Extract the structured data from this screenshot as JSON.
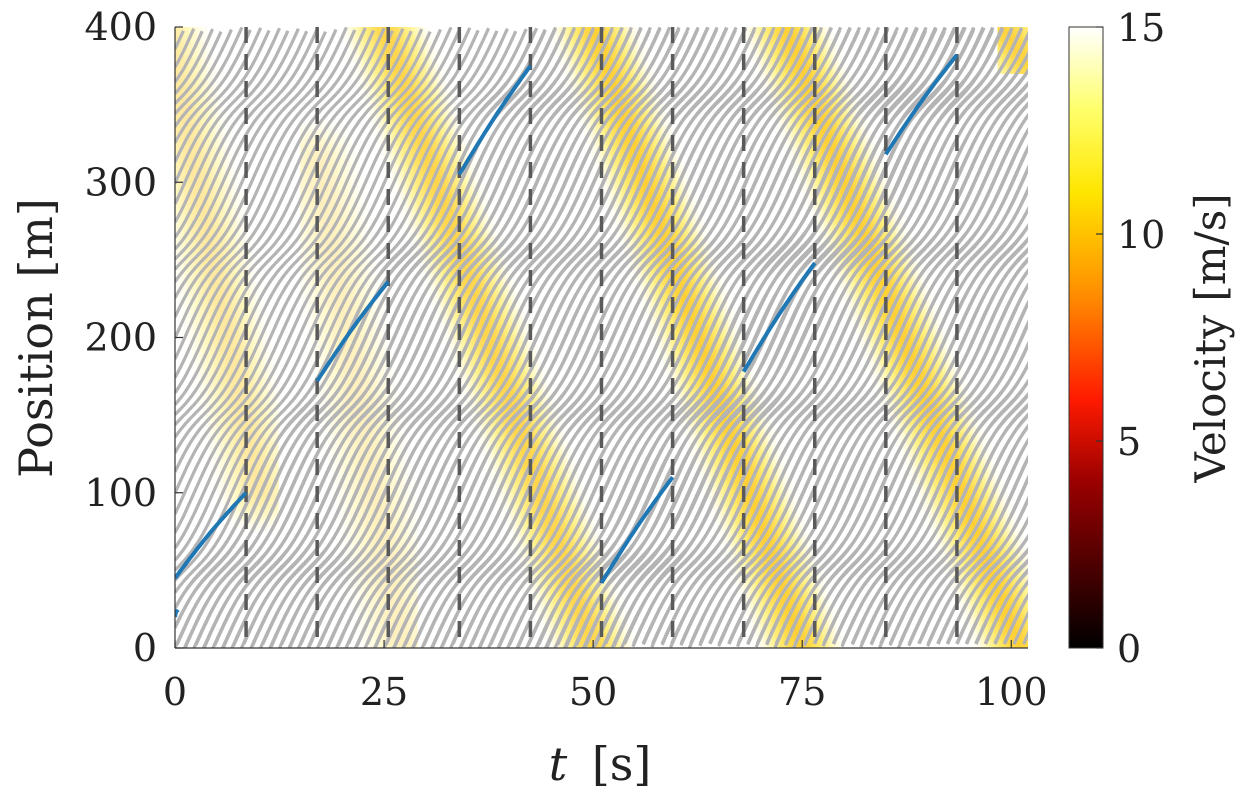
{
  "chart_data": {
    "type": "heatmap",
    "title": "",
    "xlabel_symbol": "t",
    "xlabel_unit": "[s]",
    "ylabel": "Position [m]",
    "xlim": [
      0,
      102
    ],
    "ylim": [
      0,
      400
    ],
    "x_ticks": [
      0,
      25,
      50,
      75,
      100
    ],
    "y_ticks": [
      0,
      100,
      200,
      300,
      400
    ],
    "grid": false,
    "colorbar": {
      "label": "Velocity [m/s]",
      "range": [
        0,
        15
      ],
      "ticks": [
        0,
        5,
        10,
        15
      ],
      "colormap": "hot",
      "stops": [
        {
          "value": 0,
          "color": "#000000"
        },
        {
          "value": 4,
          "color": "#9a0000"
        },
        {
          "value": 6,
          "color": "#ff1a00"
        },
        {
          "value": 8.5,
          "color": "#ff8c00"
        },
        {
          "value": 11,
          "color": "#ffe600"
        },
        {
          "value": 13,
          "color": "#ffff6a"
        },
        {
          "value": 15,
          "color": "#ffffff"
        }
      ]
    },
    "vehicle_trajectories": {
      "color": "#b4b4b4",
      "count": 42,
      "free_flow_speed_mps": 8.8,
      "track_length_m": 400
    },
    "light_switch_times_s": [
      8.5,
      17,
      25.5,
      34,
      42.5,
      51,
      59.5,
      68,
      76.5,
      85,
      93.5
    ],
    "dashed_line_color": "#5a5a5a",
    "highlighted_segments": {
      "color": "#1f77b4",
      "segments": [
        {
          "t": [
            0,
            8.5
          ],
          "pos": [
            45,
            100
          ]
        },
        {
          "t": [
            17,
            25.5
          ],
          "pos": [
            172,
            236
          ]
        },
        {
          "t": [
            34,
            42.5
          ],
          "pos": [
            305,
            375
          ]
        },
        {
          "t": [
            51,
            59.5
          ],
          "pos": [
            42,
            110
          ]
        },
        {
          "t": [
            68,
            76.5
          ],
          "pos": [
            178,
            248
          ]
        },
        {
          "t": [
            85,
            93.5
          ],
          "pos": [
            318,
            382
          ]
        },
        {
          "t": [
            0,
            0.3
          ],
          "pos": [
            20,
            23
          ]
        }
      ]
    },
    "congestion_waves": [
      {
        "t": [
          -2,
          10
        ],
        "pos": [
          425,
          100
        ],
        "intensity": 0.45
      },
      {
        "t": [
          17,
          27
        ],
        "pos": [
          315,
          0
        ],
        "intensity": 0.3
      },
      {
        "t": [
          25,
          50
        ],
        "pos": [
          400,
          0
        ],
        "intensity": 0.85
      },
      {
        "t": [
          50,
          75
        ],
        "pos": [
          400,
          0
        ],
        "intensity": 0.95
      },
      {
        "t": [
          73,
          101
        ],
        "pos": [
          400,
          0
        ],
        "intensity": 0.95
      },
      {
        "t": [
          99,
          102
        ],
        "pos": [
          400,
          375
        ],
        "intensity": 0.9
      }
    ]
  }
}
